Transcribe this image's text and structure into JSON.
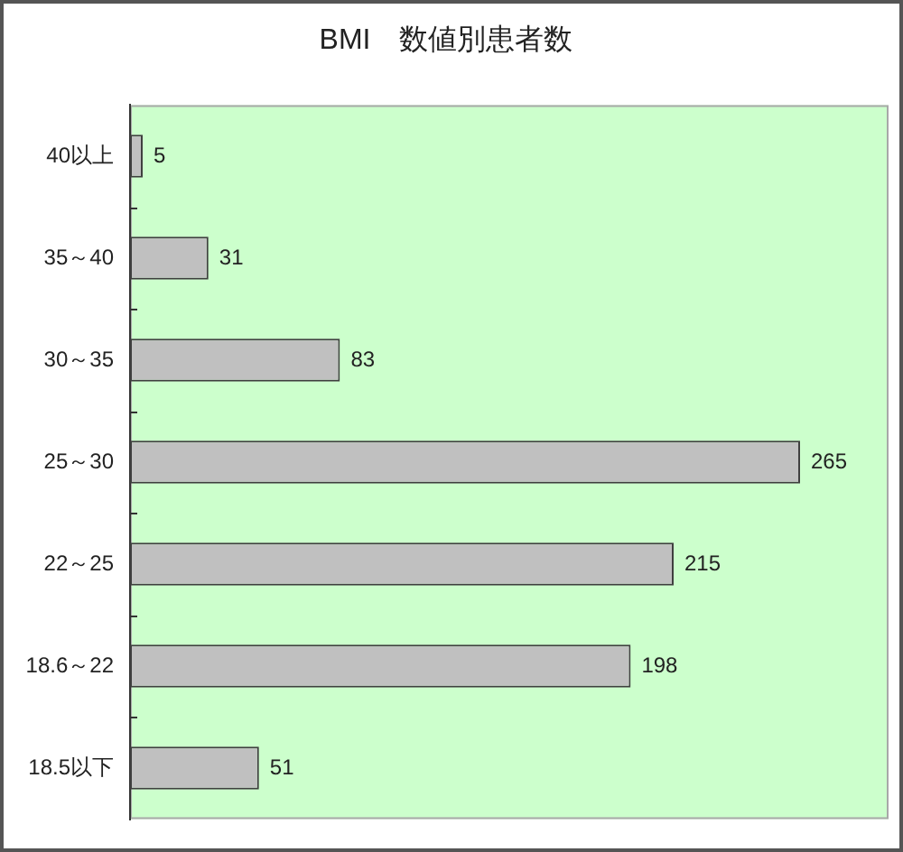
{
  "chart_data": {
    "type": "bar",
    "title": "BMI　数値別患者数",
    "orientation": "horizontal",
    "categories": [
      "40以上",
      "35～40",
      "30～35",
      "25～30",
      "22～25",
      "18.6～22",
      "18.5以下"
    ],
    "values": [
      5,
      31,
      83,
      265,
      215,
      198,
      51
    ],
    "color": "#c0c0c0",
    "xlim": [
      0,
      300
    ],
    "data_labels": true,
    "grid": false,
    "legend": false,
    "tick_labels": "y"
  }
}
